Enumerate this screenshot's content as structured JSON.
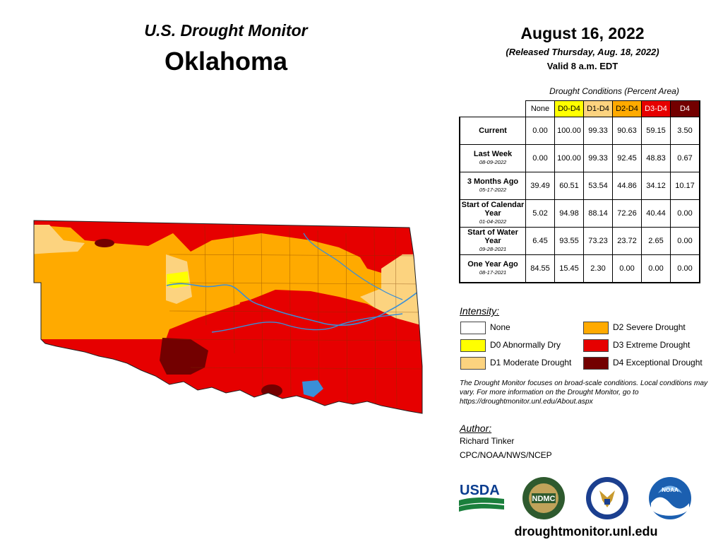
{
  "header": {
    "title": "U.S. Drought Monitor",
    "state": "Oklahoma",
    "date": "August 16, 2022",
    "released": "(Released Thursday, Aug. 18, 2022)",
    "valid": "Valid 8 a.m. EDT"
  },
  "table": {
    "caption": "Drought Conditions (Percent Area)",
    "columns": [
      "None",
      "D0-D4",
      "D1-D4",
      "D2-D4",
      "D3-D4",
      "D4"
    ],
    "column_colors": [
      "#ffffff",
      "#ffff00",
      "#fcd37f",
      "#ffaa00",
      "#e60000",
      "#730000"
    ],
    "rows": [
      {
        "label": "Current",
        "date": "",
        "values": [
          "0.00",
          "100.00",
          "99.33",
          "90.63",
          "59.15",
          "3.50"
        ]
      },
      {
        "label": "Last Week",
        "date": "08-09-2022",
        "values": [
          "0.00",
          "100.00",
          "99.33",
          "92.45",
          "48.83",
          "0.67"
        ]
      },
      {
        "label": "3 Months Ago",
        "date": "05-17-2022",
        "values": [
          "39.49",
          "60.51",
          "53.54",
          "44.86",
          "34.12",
          "10.17"
        ]
      },
      {
        "label": "Start of Calendar Year",
        "date": "01-04-2022",
        "values": [
          "5.02",
          "94.98",
          "88.14",
          "72.26",
          "40.44",
          "0.00"
        ]
      },
      {
        "label": "Start of Water Year",
        "date": "09-28-2021",
        "values": [
          "6.45",
          "93.55",
          "73.23",
          "23.72",
          "2.65",
          "0.00"
        ]
      },
      {
        "label": "One Year Ago",
        "date": "08-17-2021",
        "values": [
          "84.55",
          "15.45",
          "2.30",
          "0.00",
          "0.00",
          "0.00"
        ]
      }
    ]
  },
  "legend": {
    "title": "Intensity:",
    "items": [
      {
        "label": "None",
        "color": "#ffffff"
      },
      {
        "label": "D0 Abnormally Dry",
        "color": "#ffff00"
      },
      {
        "label": "D1 Moderate Drought",
        "color": "#fcd37f"
      },
      {
        "label": "D2 Severe Drought",
        "color": "#ffaa00"
      },
      {
        "label": "D3 Extreme Drought",
        "color": "#e60000"
      },
      {
        "label": "D4 Exceptional Drought",
        "color": "#730000"
      }
    ]
  },
  "note": "The Drought Monitor focuses on broad-scale conditions. Local conditions may vary. For more information on the Drought Monitor, go to https://droughtmonitor.unl.edu/About.aspx",
  "author": {
    "title": "Author:",
    "name": "Richard Tinker",
    "org": "CPC/NOAA/NWS/NCEP"
  },
  "logos": {
    "usda": "USDA",
    "ndmc": "NDMC",
    "noaa": "NOAA"
  },
  "website": "droughtmonitor.unl.edu"
}
